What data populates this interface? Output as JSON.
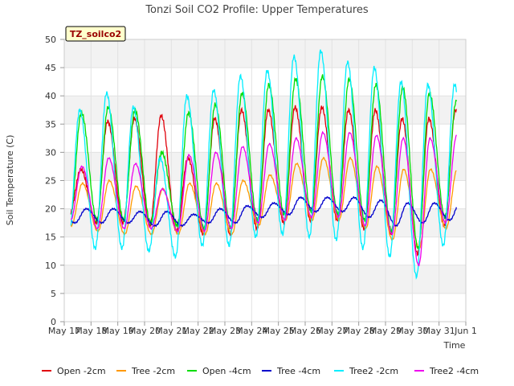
{
  "chart_data": {
    "type": "line",
    "title": "Tonzi Soil CO2 Profile: Upper Temperatures",
    "badge": "TZ_soilco2",
    "xlabel": "Time",
    "ylabel": "Soil Temperature (C)",
    "ylim": [
      0,
      50
    ],
    "yticks": [
      0,
      5,
      10,
      15,
      20,
      25,
      30,
      35,
      40,
      45,
      50
    ],
    "xlim": [
      "2024-05-17",
      "2024-06-01"
    ],
    "xtick_labels": [
      "May 17",
      "May 18",
      "May 19",
      "May 20",
      "May 21",
      "May 22",
      "May 23",
      "May 24",
      "May 25",
      "May 26",
      "May 27",
      "May 28",
      "May 29",
      "May 30",
      "May 31",
      "Jun 1"
    ],
    "grid": true,
    "legend_position": "bottom",
    "data_start_day": 0.25,
    "data_end_day": 14.65,
    "series": [
      {
        "name": "Open -2cm",
        "color": "#e0000a",
        "daily_max": [
          27,
          35.5,
          36,
          36.5,
          29,
          36,
          37.5,
          37.5,
          38,
          38,
          37.5,
          37.5,
          36,
          36,
          37.5
        ],
        "daily_min": [
          19,
          17.5,
          17.5,
          17,
          16,
          15.5,
          15.5,
          16.5,
          17.5,
          18,
          18,
          16.5,
          15.5,
          12,
          17
        ]
      },
      {
        "name": "Tree -2cm",
        "color": "#ff9900",
        "daily_max": [
          24.5,
          25,
          24,
          23.5,
          24.5,
          24.5,
          25,
          26,
          28,
          29,
          29,
          27.5,
          27,
          27,
          27
        ],
        "daily_min": [
          17,
          16,
          15.5,
          15.5,
          15.5,
          15.5,
          15.5,
          17,
          18,
          18,
          18,
          16.5,
          14.5,
          13,
          16.5
        ]
      },
      {
        "name": "Open -4cm",
        "color": "#00dd00",
        "daily_max": [
          37,
          38,
          37.5,
          30,
          37,
          38.5,
          40.5,
          42,
          43,
          43.5,
          43,
          42,
          41.5,
          40.5,
          39
        ],
        "daily_min": [
          18.5,
          18,
          18,
          17.5,
          17,
          16.5,
          16.5,
          18,
          19,
          19.5,
          19,
          18,
          16,
          13,
          18.5
        ]
      },
      {
        "name": "Tree -4cm",
        "color": "#0000cc",
        "daily_max": [
          20,
          20,
          19.5,
          19.5,
          19,
          20,
          20.5,
          21,
          22,
          22,
          22,
          21.5,
          21,
          21,
          21.5
        ],
        "daily_min": [
          17.5,
          17.5,
          17.5,
          17,
          17,
          17.5,
          17.5,
          18.5,
          19,
          19.5,
          19.5,
          18.5,
          17,
          17.5,
          18
        ]
      },
      {
        "name": "Tree2 -2cm",
        "color": "#00eeff",
        "daily_max": [
          37.5,
          40.5,
          38,
          29,
          40,
          41,
          43.5,
          44.5,
          47,
          48,
          46,
          45,
          42.5,
          42,
          42
        ],
        "daily_min": [
          14.5,
          13,
          13,
          12.5,
          11.5,
          13.5,
          13.5,
          15,
          15.5,
          15,
          14.5,
          13,
          11.5,
          8,
          13.5
        ]
      },
      {
        "name": "Tree2 -4cm",
        "color": "#ee00ee",
        "daily_max": [
          27.5,
          29,
          28,
          23.5,
          29.5,
          30,
          31,
          31.5,
          32.5,
          33.5,
          33.5,
          33,
          32.5,
          32.5,
          33
        ],
        "daily_min": [
          18,
          16.5,
          16.5,
          16.5,
          16,
          16,
          16.5,
          17.5,
          18,
          18.5,
          18.5,
          17,
          15.5,
          10,
          17.5
        ]
      }
    ]
  }
}
